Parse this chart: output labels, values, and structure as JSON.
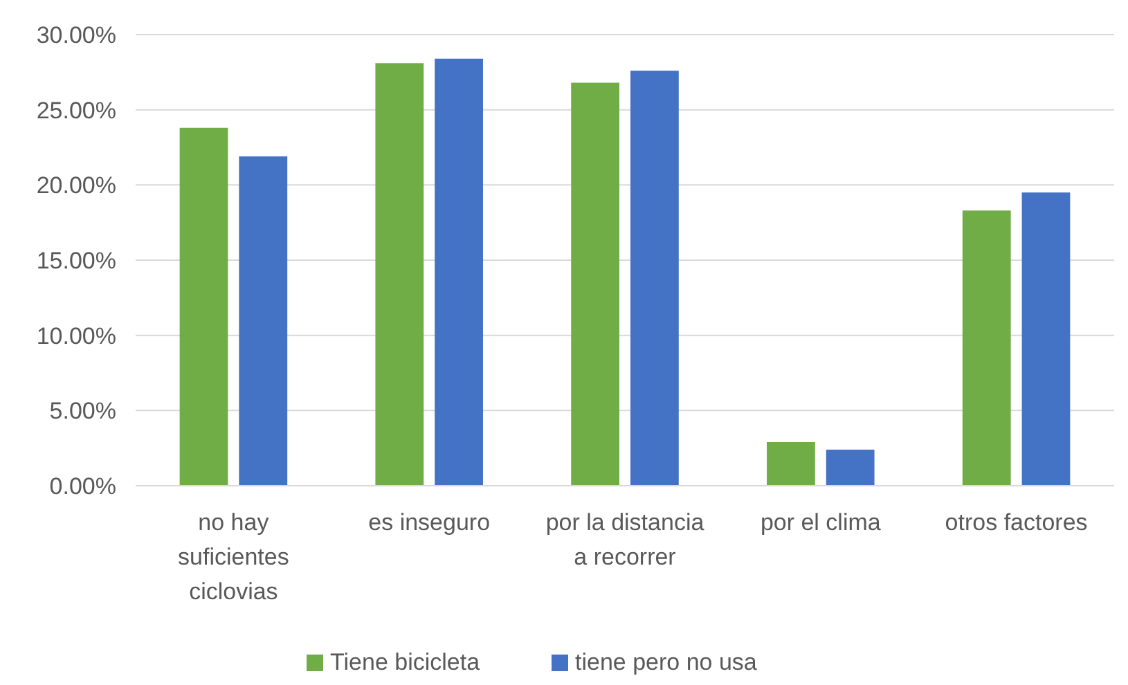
{
  "chart_data": {
    "type": "bar",
    "categories": [
      "no hay suficientes ciclovias",
      "es inseguro",
      "por la distancia a recorrer",
      "por el clima",
      "otros factores"
    ],
    "series": [
      {
        "name": "Tiene bicicleta",
        "color": "#70ad47",
        "values": [
          23.8,
          28.1,
          26.8,
          2.9,
          18.3
        ]
      },
      {
        "name": "tiene pero no usa",
        "color": "#4472c4",
        "values": [
          21.9,
          28.4,
          27.6,
          2.4,
          19.5
        ]
      }
    ],
    "ylim": [
      0,
      30
    ],
    "yticks": [
      {
        "value": 0,
        "label": "0.00%"
      },
      {
        "value": 5,
        "label": "5.00%"
      },
      {
        "value": 10,
        "label": "10.00%"
      },
      {
        "value": 15,
        "label": "15.00%"
      },
      {
        "value": 20,
        "label": "20.00%"
      },
      {
        "value": 25,
        "label": "25.00%"
      },
      {
        "value": 30,
        "label": "30.00%"
      }
    ],
    "grid": "y",
    "legend": "bottom"
  }
}
